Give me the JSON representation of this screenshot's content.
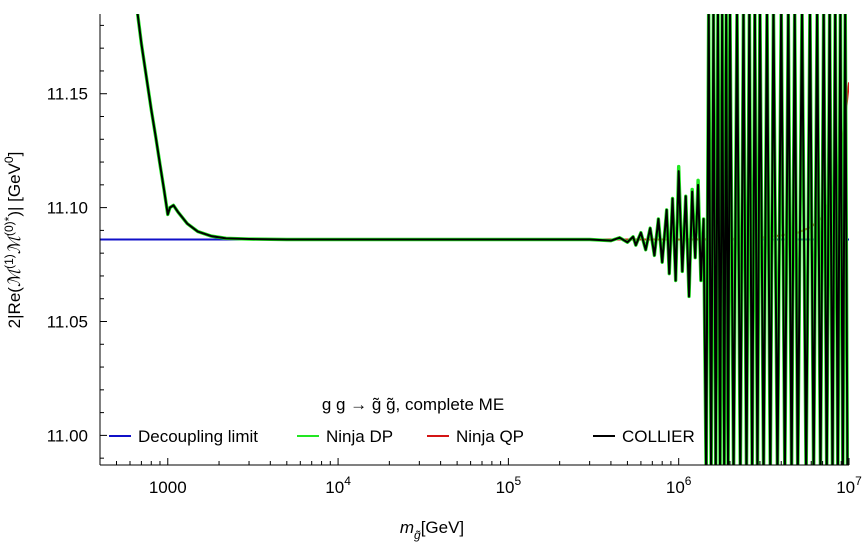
{
  "chart_data": {
    "type": "line",
    "title": "",
    "xlabel": "m_g̃ [GeV]",
    "xlabel_parts": {
      "main": "m",
      "sub": "g̃",
      "unit": "[GeV]"
    },
    "ylabel": "2|Re(ℳ⁽¹⁾ℳ⁽⁰⁾*)| [GeV⁰]",
    "ylabel_parts": {
      "prefix": "2|Re(",
      "m1": "ℳ",
      "sup1": "(1)",
      "m2": "ℳ",
      "sup2": "(0)*",
      "suffix": ")| [GeV",
      "sup3": "0",
      "close": "]"
    },
    "x_scale": "log",
    "xlim": [
      400,
      10000000
    ],
    "ylim": [
      10.987,
      11.185
    ],
    "x_ticks": [
      {
        "value": 1000,
        "label": "1000"
      },
      {
        "value": 10000,
        "label": "10",
        "exp": "4"
      },
      {
        "value": 100000,
        "label": "10",
        "exp": "5"
      },
      {
        "value": 1000000,
        "label": "10",
        "exp": "6"
      },
      {
        "value": 10000000,
        "label": "10",
        "exp": "7"
      }
    ],
    "y_ticks": [
      {
        "value": 11.0,
        "label": "11.00"
      },
      {
        "value": 11.05,
        "label": "11.05"
      },
      {
        "value": 11.1,
        "label": "11.10"
      },
      {
        "value": 11.15,
        "label": "11.15"
      }
    ],
    "legend": {
      "title": "g g → g̃ g̃, complete ME",
      "placement": "bottom-center",
      "entries": [
        {
          "name": "Decoupling limit",
          "color": "#1010c8"
        },
        {
          "name": "Ninja DP",
          "color": "#22e622"
        },
        {
          "name": "Ninja QP",
          "color": "#d41515"
        },
        {
          "name": "COLLIER",
          "color": "#000000"
        }
      ]
    },
    "series": [
      {
        "name": "Decoupling limit",
        "color": "#1010c8",
        "x": [
          400,
          10000000
        ],
        "y": [
          11.086,
          11.086
        ]
      },
      {
        "name": "Ninja QP",
        "color": "#d41515",
        "x": [
          660,
          700,
          750,
          800,
          850,
          900,
          950,
          1000,
          1030,
          1080,
          1150,
          1300,
          1500,
          1800,
          2200,
          3000,
          5000,
          100000,
          1000000,
          2000000,
          3000000,
          4000000,
          5000000,
          6000000,
          7000000,
          8000000,
          9000000,
          10000000
        ],
        "y": [
          11.187,
          11.172,
          11.157,
          11.143,
          11.131,
          11.119,
          11.108,
          11.097,
          11.1,
          11.101,
          11.098,
          11.093,
          11.0895,
          11.0875,
          11.0865,
          11.0862,
          11.086,
          11.086,
          11.086,
          11.0862,
          11.0868,
          11.0878,
          11.089,
          11.0915,
          11.096,
          11.106,
          11.123,
          11.155
        ]
      },
      {
        "name": "Ninja DP",
        "color": "#22e622",
        "x": [
          660,
          700,
          750,
          800,
          850,
          900,
          950,
          1000,
          1030,
          1080,
          1150,
          1300,
          1500,
          1800,
          2200,
          3000,
          5000,
          300000,
          400000,
          450000,
          500000,
          540000,
          560000,
          600000,
          640000,
          680000,
          720000,
          760000,
          800000,
          850000,
          880000,
          920000,
          960000,
          1000000,
          1050000,
          1100000,
          1150000,
          1200000,
          1250000,
          1300000,
          1350000,
          1400000,
          1450000,
          1500000,
          1550000,
          1600000,
          1650000,
          1700000,
          1750000,
          1800000,
          1850000,
          1900000,
          1950000,
          2000000,
          2100000,
          2200000,
          2300000,
          2400000,
          2500000,
          2600000,
          2700000,
          2800000,
          2900000,
          3000000,
          3150000,
          3300000,
          3450000,
          3600000,
          3800000,
          4000000,
          4200000,
          4400000,
          4600000,
          4800000,
          5000000,
          5300000,
          5600000,
          5900000,
          6200000,
          6500000,
          6800000,
          7100000,
          7400000,
          7700000,
          8000000,
          8300000,
          8600000,
          8900000,
          9200000,
          9500000,
          9800000
        ],
        "y": [
          11.187,
          11.172,
          11.157,
          11.143,
          11.131,
          11.119,
          11.108,
          11.097,
          11.1,
          11.101,
          11.098,
          11.093,
          11.0895,
          11.0875,
          11.0865,
          11.0862,
          11.086,
          11.086,
          11.0855,
          11.0868,
          11.0848,
          11.0872,
          11.0835,
          11.089,
          11.0815,
          11.091,
          11.079,
          11.095,
          11.076,
          11.099,
          11.071,
          11.104,
          11.068,
          11.118,
          11.072,
          11.105,
          11.061,
          11.108,
          11.078,
          11.112,
          11.068,
          11.095,
          10.98,
          11.19,
          10.98,
          11.19,
          10.98,
          11.19,
          10.98,
          11.19,
          10.98,
          11.19,
          10.98,
          11.19,
          10.98,
          11.19,
          10.98,
          11.19,
          10.98,
          11.19,
          10.98,
          11.19,
          10.98,
          11.19,
          10.98,
          11.19,
          10.98,
          11.19,
          10.98,
          11.19,
          10.98,
          11.19,
          10.98,
          11.19,
          10.98,
          11.19,
          10.98,
          11.19,
          10.98,
          11.19,
          10.98,
          11.19,
          10.98,
          11.19,
          10.98,
          11.19,
          10.98,
          11.19,
          10.98,
          11.19,
          10.98
        ]
      },
      {
        "name": "COLLIER",
        "color": "#000000",
        "x": [
          660,
          700,
          750,
          800,
          850,
          900,
          950,
          1000,
          1030,
          1080,
          1150,
          1300,
          1500,
          1800,
          2200,
          3000,
          5000,
          300000,
          400000,
          450000,
          500000,
          540000,
          560000,
          600000,
          640000,
          680000,
          720000,
          760000,
          800000,
          850000,
          880000,
          920000,
          960000,
          1000000,
          1050000,
          1100000,
          1150000,
          1200000,
          1250000,
          1300000,
          1350000,
          1400000,
          1450000,
          1500000,
          1550000,
          1600000,
          1650000,
          1700000,
          1750000,
          1800000,
          1850000,
          1900000,
          1950000,
          2000000,
          2100000,
          2200000,
          2300000,
          2400000,
          2500000,
          2600000,
          2700000,
          2800000,
          2900000,
          3000000,
          3150000,
          3300000,
          3450000,
          3600000,
          3800000,
          4000000,
          4200000,
          4400000,
          4600000,
          4800000,
          5000000,
          5300000,
          5600000,
          5900000,
          6200000,
          6500000,
          6800000,
          7100000,
          7400000,
          7700000,
          8000000,
          8300000,
          8600000,
          8900000,
          9200000,
          9500000,
          9800000
        ],
        "y": [
          11.187,
          11.172,
          11.157,
          11.143,
          11.131,
          11.119,
          11.108,
          11.097,
          11.1,
          11.101,
          11.098,
          11.093,
          11.0895,
          11.0875,
          11.0865,
          11.0862,
          11.086,
          11.086,
          11.0855,
          11.0868,
          11.0848,
          11.0872,
          11.0835,
          11.089,
          11.0815,
          11.091,
          11.079,
          11.095,
          11.076,
          11.099,
          11.071,
          11.104,
          11.068,
          11.116,
          11.072,
          11.105,
          11.061,
          11.107,
          11.078,
          11.11,
          11.068,
          11.095,
          10.98,
          11.19,
          10.98,
          11.19,
          10.98,
          11.19,
          10.98,
          11.19,
          10.98,
          11.19,
          10.98,
          11.19,
          10.98,
          11.19,
          10.98,
          11.19,
          10.98,
          11.19,
          10.98,
          11.19,
          10.98,
          11.19,
          10.98,
          11.19,
          10.98,
          11.19,
          10.98,
          11.19,
          10.98,
          11.19,
          10.98,
          11.19,
          10.98,
          11.19,
          10.98,
          11.19,
          10.98,
          11.19,
          10.98,
          11.19,
          10.98,
          11.19,
          10.98,
          11.19,
          10.98,
          11.19,
          10.98,
          11.19,
          10.98
        ]
      }
    ]
  }
}
